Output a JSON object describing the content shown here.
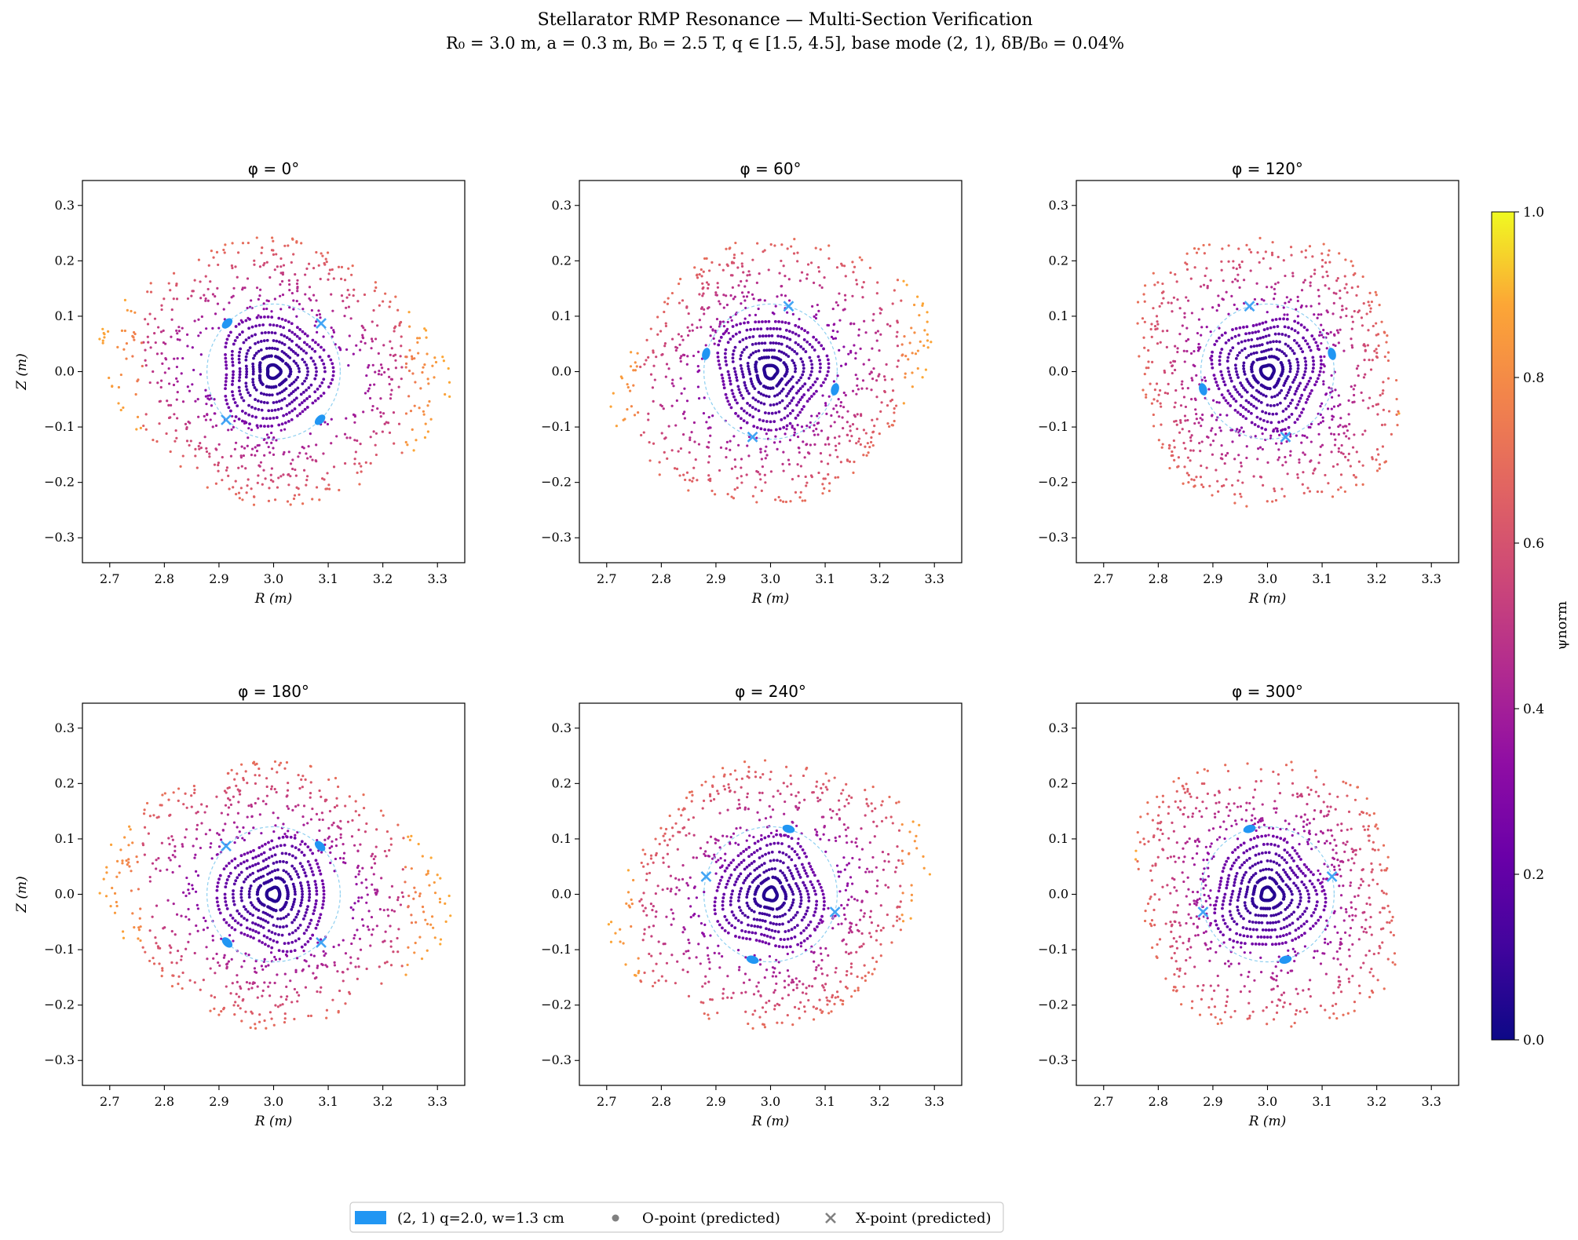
{
  "figure": {
    "title": "Stellarator RMP Resonance — Multi-Section Verification",
    "subtitle": "R₀ = 3.0 m,  a = 0.3 m,  B₀ = 2.5 T,  q ∈ [1.5, 4.5],  base mode (2, 1),  δB/B₀ = 0.04%"
  },
  "legend": {
    "items": [
      {
        "label": "(2, 1) q=2.0, w=1.3 cm",
        "kind": "band",
        "color": "#2196F3"
      },
      {
        "label": "O-point (predicted)",
        "kind": "dot",
        "color": "#808080"
      },
      {
        "label": "X-point (predicted)",
        "kind": "cross",
        "color": "#808080"
      }
    ]
  },
  "colorbar": {
    "label": "ψnorm",
    "colormap": "plasma",
    "range": [
      0.0,
      1.0
    ],
    "ticks": [
      "0.0",
      "0.2",
      "0.4",
      "0.6",
      "0.8",
      "1.0"
    ]
  },
  "colors": {
    "island": "#2196F3",
    "xpoint": "#42A5F5",
    "separatrix": "#8ECFF0"
  },
  "chart_data": [
    {
      "type": "scatter",
      "title": "φ = 0°",
      "phi_deg": 0,
      "xlabel": "R (m)",
      "ylabel": "Z (m)",
      "xlim": [
        2.65,
        3.35
      ],
      "ylim": [
        -0.345,
        0.345
      ],
      "xticks": [
        "2.7",
        "2.8",
        "2.9",
        "3.0",
        "3.1",
        "3.2",
        "3.3"
      ],
      "yticks": [
        "−0.3",
        "−0.2",
        "−0.1",
        "0.0",
        "0.1",
        "0.2",
        "0.3"
      ],
      "resonant_surface": {
        "R0": 3.0,
        "radius": 0.122
      },
      "o_points": [
        [
          2.915,
          0.087
        ],
        [
          3.085,
          -0.087
        ]
      ],
      "x_points": [
        [
          3.087,
          0.087
        ],
        [
          2.913,
          -0.087
        ]
      ]
    },
    {
      "type": "scatter",
      "title": "φ = 60°",
      "phi_deg": 60,
      "xlabel": "R (m)",
      "ylabel": "",
      "xlim": [
        2.65,
        3.35
      ],
      "ylim": [
        -0.345,
        0.345
      ],
      "xticks": [
        "2.7",
        "2.8",
        "2.9",
        "3.0",
        "3.1",
        "3.2",
        "3.3"
      ],
      "yticks": [
        "−0.3",
        "−0.2",
        "−0.1",
        "0.0",
        "0.1",
        "0.2",
        "0.3"
      ],
      "resonant_surface": {
        "R0": 3.0,
        "radius": 0.122
      },
      "o_points": [
        [
          2.882,
          0.032
        ],
        [
          3.118,
          -0.032
        ]
      ],
      "x_points": [
        [
          3.033,
          0.118
        ],
        [
          2.967,
          -0.118
        ]
      ]
    },
    {
      "type": "scatter",
      "title": "φ = 120°",
      "phi_deg": 120,
      "xlabel": "R (m)",
      "ylabel": "",
      "xlim": [
        2.65,
        3.35
      ],
      "ylim": [
        -0.345,
        0.345
      ],
      "xticks": [
        "2.7",
        "2.8",
        "2.9",
        "3.0",
        "3.1",
        "3.2",
        "3.3"
      ],
      "yticks": [
        "−0.3",
        "−0.2",
        "−0.1",
        "0.0",
        "0.1",
        "0.2",
        "0.3"
      ],
      "resonant_surface": {
        "R0": 3.0,
        "radius": 0.122
      },
      "o_points": [
        [
          3.118,
          0.032
        ],
        [
          2.882,
          -0.032
        ]
      ],
      "x_points": [
        [
          2.967,
          0.118
        ],
        [
          3.033,
          -0.118
        ]
      ]
    },
    {
      "type": "scatter",
      "title": "φ = 180°",
      "phi_deg": 180,
      "xlabel": "R (m)",
      "ylabel": "Z (m)",
      "xlim": [
        2.65,
        3.35
      ],
      "ylim": [
        -0.345,
        0.345
      ],
      "xticks": [
        "2.7",
        "2.8",
        "2.9",
        "3.0",
        "3.1",
        "3.2",
        "3.3"
      ],
      "yticks": [
        "−0.3",
        "−0.2",
        "−0.1",
        "0.0",
        "0.1",
        "0.2",
        "0.3"
      ],
      "resonant_surface": {
        "R0": 3.0,
        "radius": 0.122
      },
      "o_points": [
        [
          3.085,
          0.087
        ],
        [
          2.915,
          -0.087
        ]
      ],
      "x_points": [
        [
          2.913,
          0.087
        ],
        [
          3.087,
          -0.087
        ]
      ]
    },
    {
      "type": "scatter",
      "title": "φ = 240°",
      "phi_deg": 240,
      "xlabel": "R (m)",
      "ylabel": "",
      "xlim": [
        2.65,
        3.35
      ],
      "ylim": [
        -0.345,
        0.345
      ],
      "xticks": [
        "2.7",
        "2.8",
        "2.9",
        "3.0",
        "3.1",
        "3.2",
        "3.3"
      ],
      "yticks": [
        "−0.3",
        "−0.2",
        "−0.1",
        "0.0",
        "0.1",
        "0.2",
        "0.3"
      ],
      "resonant_surface": {
        "R0": 3.0,
        "radius": 0.122
      },
      "o_points": [
        [
          3.033,
          0.118
        ],
        [
          2.967,
          -0.118
        ]
      ],
      "x_points": [
        [
          2.882,
          0.032
        ],
        [
          3.118,
          -0.032
        ]
      ]
    },
    {
      "type": "scatter",
      "title": "φ = 300°",
      "phi_deg": 300,
      "xlabel": "R (m)",
      "ylabel": "",
      "xlim": [
        2.65,
        3.35
      ],
      "ylim": [
        -0.345,
        0.345
      ],
      "xticks": [
        "2.7",
        "2.8",
        "2.9",
        "3.0",
        "3.1",
        "3.2",
        "3.3"
      ],
      "yticks": [
        "−0.3",
        "−0.2",
        "−0.1",
        "0.0",
        "0.1",
        "0.2",
        "0.3"
      ],
      "resonant_surface": {
        "R0": 3.0,
        "radius": 0.122
      },
      "o_points": [
        [
          2.967,
          0.118
        ],
        [
          3.033,
          -0.118
        ]
      ],
      "x_points": [
        [
          3.118,
          0.032
        ],
        [
          2.882,
          -0.032
        ]
      ]
    }
  ]
}
